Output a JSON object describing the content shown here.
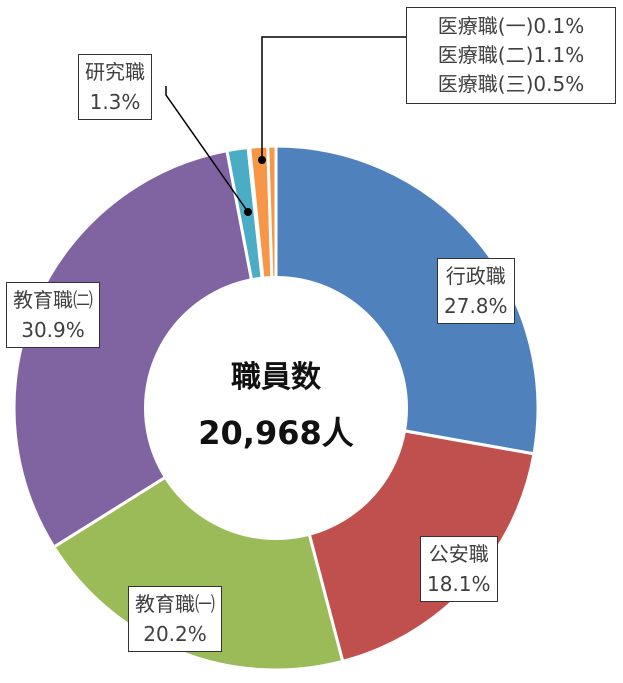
{
  "chart_data": {
    "type": "pie",
    "variant": "donut",
    "start_angle_deg": 0,
    "direction": "clockwise",
    "center": {
      "title": "職員数",
      "value": "20,968人"
    },
    "slices": [
      {
        "key": "gyosei",
        "label": "行政職",
        "value": 27.8,
        "value_text": "27.8%",
        "color": "#4F81BD"
      },
      {
        "key": "koan",
        "label": "公安職",
        "value": 18.1,
        "value_text": "18.1%",
        "color": "#C0504D"
      },
      {
        "key": "kyoiku1",
        "label": "教育職㈠",
        "value": 20.2,
        "value_text": "20.2%",
        "color": "#9BBB59"
      },
      {
        "key": "kyoiku2",
        "label": "教育職㈡",
        "value": 30.9,
        "value_text": "30.9%",
        "color": "#8064A2"
      },
      {
        "key": "kenkyu",
        "label": "研究職",
        "value": 1.3,
        "value_text": "1.3%",
        "color": "#4BACC6"
      },
      {
        "key": "iryo1",
        "label": "医療職(一)",
        "value": 0.1,
        "value_text": "0.1%",
        "color": "#F79646"
      },
      {
        "key": "iryo2",
        "label": "医療職(二)",
        "value": 1.1,
        "value_text": "1.1%",
        "color": "#F79646"
      },
      {
        "key": "iryo3",
        "label": "医療職(三)",
        "value": 0.5,
        "value_text": "0.5%",
        "color": "#F79646"
      }
    ]
  }
}
